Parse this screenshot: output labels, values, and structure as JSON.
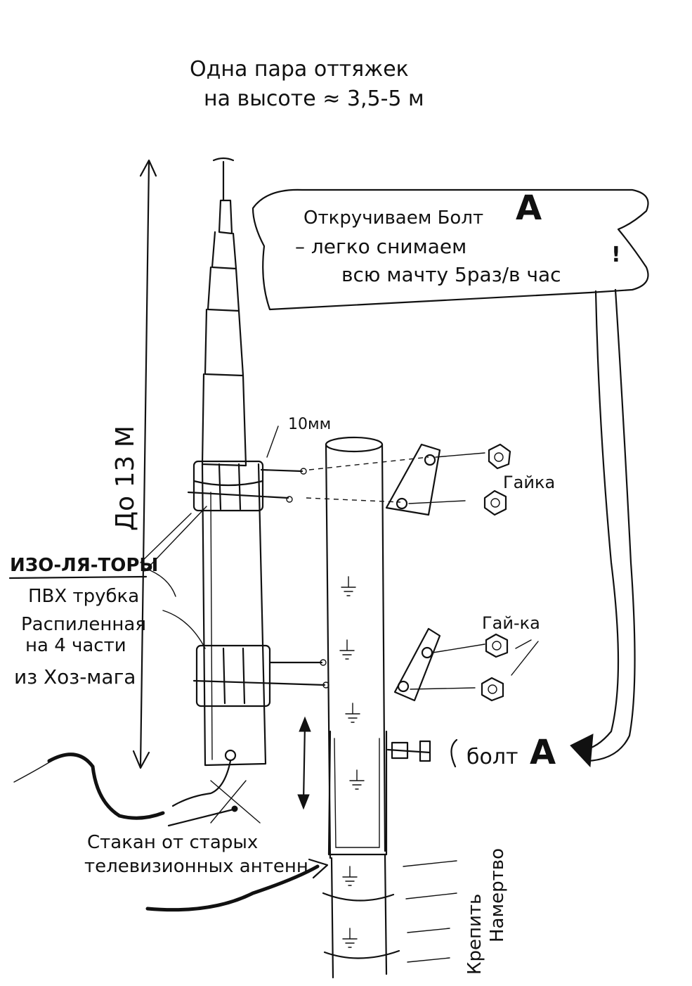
{
  "header": {
    "line1": "Одна пара оттяжек",
    "line2": "на высоте ≈ 3,5-5 м"
  },
  "callout": {
    "line1": "Откручиваем Болт",
    "line1_letter": "А",
    "line2": "– легко снимаем",
    "line3": "всю мачту 5раз/в час",
    "exclaim": "!"
  },
  "labels": {
    "height": "До 13 М",
    "diameter": "10мм",
    "nut1": "Гайка",
    "nut2": "Гай-ка",
    "bolt": "болт",
    "bolt_letter": "А",
    "insulator": "ИЗО-ЛЯ-ТОРЫ",
    "pvc1": "ПВХ трубка",
    "pvc2": "Распиленная",
    "pvc3": "на 4 части",
    "pvc4": "из Хоз-мага",
    "cup1": "Стакан от старых",
    "cup2": "телевизионных антенн",
    "fix1": "Крепить",
    "fix2": "Намертво"
  },
  "colors": {
    "ink": "#111111",
    "paper": "#ffffff"
  }
}
